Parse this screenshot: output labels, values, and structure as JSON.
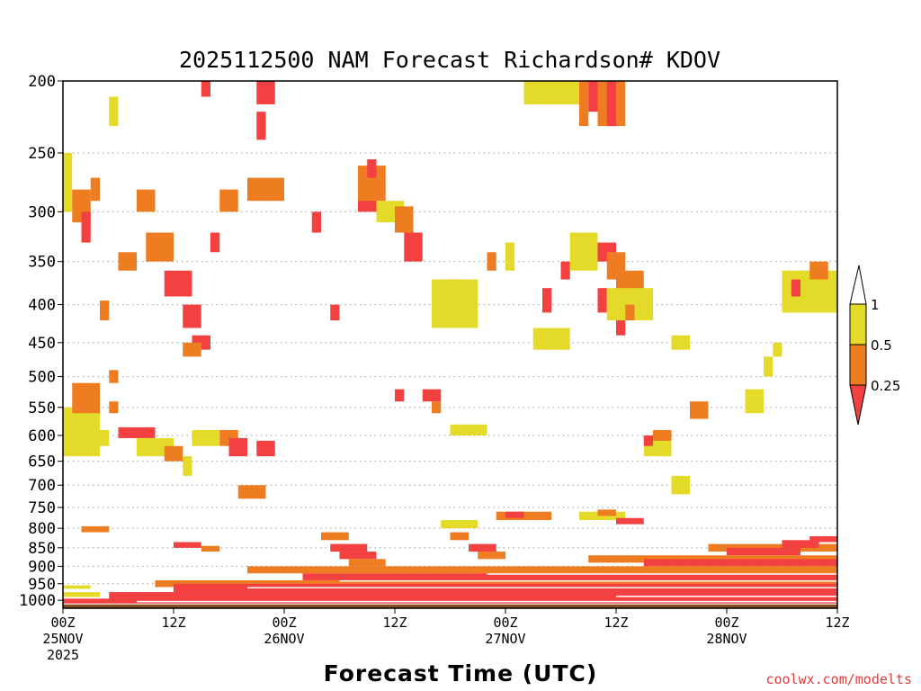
{
  "chart_data": {
    "type": "heatmap",
    "title": "2025112500 NAM Forecast Richardson# KDOV",
    "xlabel": "Forecast Time (UTC)",
    "ylabel": "",
    "credit": "coolwx.com/modelts",
    "x_hours_range": [
      0,
      84
    ],
    "y_pressure_range": [
      1025,
      200
    ],
    "y_ticks": [
      "200",
      "250",
      "300",
      "350",
      "400",
      "450",
      "500",
      "550",
      "600",
      "650",
      "700",
      "750",
      "800",
      "850",
      "900",
      "950",
      "1000"
    ],
    "x_ticks": [
      {
        "hour": 0,
        "line1": "00Z",
        "line2": "25NOV",
        "line3": "2025"
      },
      {
        "hour": 12,
        "line1": "12Z",
        "line2": "",
        "line3": ""
      },
      {
        "hour": 24,
        "line1": "00Z",
        "line2": "26NOV",
        "line3": ""
      },
      {
        "hour": 36,
        "line1": "12Z",
        "line2": "",
        "line3": ""
      },
      {
        "hour": 48,
        "line1": "00Z",
        "line2": "27NOV",
        "line3": ""
      },
      {
        "hour": 60,
        "line1": "12Z",
        "line2": "",
        "line3": ""
      },
      {
        "hour": 72,
        "line1": "00Z",
        "line2": "28NOV",
        "line3": ""
      },
      {
        "hour": 84,
        "line1": "12Z",
        "line2": "",
        "line3": ""
      }
    ],
    "legend": {
      "labels": [
        "1",
        "0.5",
        "0.25"
      ],
      "bins": [
        {
          "range": "0.5-1",
          "color": "#e4da2a"
        },
        {
          "range": "0.25-0.5",
          "color": "#ee7d22"
        },
        {
          "range": "<0.25",
          "color": "#f34040"
        }
      ]
    },
    "colors": {
      "y": "#e4da2a",
      "o": "#ee7d22",
      "r": "#f34040",
      "ground": "#8a4a22"
    },
    "ground_pressure": 1013,
    "cells": [
      {
        "t": [
          0,
          4
        ],
        "p": [
          640,
          550
        ],
        "c": "y"
      },
      {
        "t": [
          1,
          4
        ],
        "p": [
          560,
          510
        ],
        "c": "o"
      },
      {
        "t": [
          2,
          5
        ],
        "p": [
          620,
          590
        ],
        "c": "y"
      },
      {
        "t": [
          5,
          6
        ],
        "p": [
          510,
          490
        ],
        "c": "o"
      },
      {
        "t": [
          5,
          6
        ],
        "p": [
          560,
          540
        ],
        "c": "o"
      },
      {
        "t": [
          6,
          10
        ],
        "p": [
          605,
          585
        ],
        "c": "r"
      },
      {
        "t": [
          8,
          12
        ],
        "p": [
          640,
          605
        ],
        "c": "y"
      },
      {
        "t": [
          11,
          13
        ],
        "p": [
          650,
          620
        ],
        "c": "o"
      },
      {
        "t": [
          13,
          14
        ],
        "p": [
          680,
          640
        ],
        "c": "y"
      },
      {
        "t": [
          14,
          17
        ],
        "p": [
          620,
          590
        ],
        "c": "y"
      },
      {
        "t": [
          17,
          19
        ],
        "p": [
          620,
          590
        ],
        "c": "o"
      },
      {
        "t": [
          18,
          20
        ],
        "p": [
          640,
          605
        ],
        "c": "r"
      },
      {
        "t": [
          19,
          22
        ],
        "p": [
          730,
          700
        ],
        "c": "o"
      },
      {
        "t": [
          21,
          23
        ],
        "p": [
          640,
          610
        ],
        "c": "r"
      },
      {
        "t": [
          0,
          1
        ],
        "p": [
          300,
          250
        ],
        "c": "y"
      },
      {
        "t": [
          1,
          3
        ],
        "p": [
          310,
          280
        ],
        "c": "o"
      },
      {
        "t": [
          2,
          3
        ],
        "p": [
          330,
          300
        ],
        "c": "r"
      },
      {
        "t": [
          3,
          4
        ],
        "p": [
          290,
          270
        ],
        "c": "o"
      },
      {
        "t": [
          4,
          5
        ],
        "p": [
          420,
          395
        ],
        "c": "o"
      },
      {
        "t": [
          5,
          6
        ],
        "p": [
          230,
          210
        ],
        "c": "y"
      },
      {
        "t": [
          6,
          8
        ],
        "p": [
          360,
          340
        ],
        "c": "o"
      },
      {
        "t": [
          8,
          10
        ],
        "p": [
          300,
          280
        ],
        "c": "o"
      },
      {
        "t": [
          9,
          12
        ],
        "p": [
          350,
          320
        ],
        "c": "o"
      },
      {
        "t": [
          11,
          14
        ],
        "p": [
          390,
          360
        ],
        "c": "r"
      },
      {
        "t": [
          13,
          15
        ],
        "p": [
          430,
          400
        ],
        "c": "r"
      },
      {
        "t": [
          14,
          16
        ],
        "p": [
          460,
          440
        ],
        "c": "r"
      },
      {
        "t": [
          13,
          15
        ],
        "p": [
          470,
          450
        ],
        "c": "o"
      },
      {
        "t": [
          15,
          16
        ],
        "p": [
          210,
          200
        ],
        "c": "r"
      },
      {
        "t": [
          16,
          17
        ],
        "p": [
          340,
          320
        ],
        "c": "r"
      },
      {
        "t": [
          17,
          19
        ],
        "p": [
          300,
          280
        ],
        "c": "o"
      },
      {
        "t": [
          20,
          22
        ],
        "p": [
          290,
          270
        ],
        "c": "o"
      },
      {
        "t": [
          21,
          23
        ],
        "p": [
          215,
          200
        ],
        "c": "r"
      },
      {
        "t": [
          21,
          22
        ],
        "p": [
          240,
          220
        ],
        "c": "r"
      },
      {
        "t": [
          22,
          24
        ],
        "p": [
          290,
          270
        ],
        "c": "o"
      },
      {
        "t": [
          27,
          28
        ],
        "p": [
          320,
          300
        ],
        "c": "r"
      },
      {
        "t": [
          29,
          30
        ],
        "p": [
          420,
          400
        ],
        "c": "r"
      },
      {
        "t": [
          32,
          34
        ],
        "p": [
          300,
          270
        ],
        "c": "r"
      },
      {
        "t": [
          32,
          35
        ],
        "p": [
          290,
          260
        ],
        "c": "o"
      },
      {
        "t": [
          33,
          34
        ],
        "p": [
          270,
          255
        ],
        "c": "r"
      },
      {
        "t": [
          34,
          37
        ],
        "p": [
          310,
          290
        ],
        "c": "y"
      },
      {
        "t": [
          36,
          38
        ],
        "p": [
          320,
          295
        ],
        "c": "o"
      },
      {
        "t": [
          37,
          39
        ],
        "p": [
          350,
          320
        ],
        "c": "r"
      },
      {
        "t": [
          36,
          37
        ],
        "p": [
          540,
          520
        ],
        "c": "r"
      },
      {
        "t": [
          39,
          41
        ],
        "p": [
          540,
          520
        ],
        "c": "r"
      },
      {
        "t": [
          40,
          41
        ],
        "p": [
          560,
          540
        ],
        "c": "o"
      },
      {
        "t": [
          41,
          43
        ],
        "p": [
          390,
          370
        ],
        "c": "r"
      },
      {
        "t": [
          43,
          44
        ],
        "p": [
          390,
          370
        ],
        "c": "o"
      },
      {
        "t": [
          40,
          45
        ],
        "p": [
          430,
          370
        ],
        "c": "y"
      },
      {
        "t": [
          42,
          46
        ],
        "p": [
          600,
          580
        ],
        "c": "y"
      },
      {
        "t": [
          46,
          47
        ],
        "p": [
          360,
          340
        ],
        "c": "o"
      },
      {
        "t": [
          48,
          49
        ],
        "p": [
          360,
          330
        ],
        "c": "y"
      },
      {
        "t": [
          52,
          53
        ],
        "p": [
          410,
          380
        ],
        "c": "r"
      },
      {
        "t": [
          51,
          55
        ],
        "p": [
          460,
          430
        ],
        "c": "y"
      },
      {
        "t": [
          54,
          55
        ],
        "p": [
          370,
          350
        ],
        "c": "r"
      },
      {
        "t": [
          55,
          58
        ],
        "p": [
          360,
          320
        ],
        "c": "y"
      },
      {
        "t": [
          56,
          57
        ],
        "p": [
          230,
          200
        ],
        "c": "o"
      },
      {
        "t": [
          57,
          59
        ],
        "p": [
          220,
          200
        ],
        "c": "r"
      },
      {
        "t": [
          58,
          61
        ],
        "p": [
          230,
          200
        ],
        "c": "o"
      },
      {
        "t": [
          59,
          60
        ],
        "p": [
          230,
          200
        ],
        "c": "r"
      },
      {
        "t": [
          50,
          56
        ],
        "p": [
          215,
          200
        ],
        "c": "y"
      },
      {
        "t": [
          58,
          59
        ],
        "p": [
          410,
          380
        ],
        "c": "r"
      },
      {
        "t": [
          58,
          60
        ],
        "p": [
          350,
          330
        ],
        "c": "r"
      },
      {
        "t": [
          59,
          61
        ],
        "p": [
          370,
          340
        ],
        "c": "o"
      },
      {
        "t": [
          60,
          63
        ],
        "p": [
          390,
          360
        ],
        "c": "o"
      },
      {
        "t": [
          59,
          64
        ],
        "p": [
          420,
          380
        ],
        "c": "y"
      },
      {
        "t": [
          60,
          61
        ],
        "p": [
          440,
          420
        ],
        "c": "r"
      },
      {
        "t": [
          61,
          62
        ],
        "p": [
          420,
          400
        ],
        "c": "o"
      },
      {
        "t": [
          66,
          68
        ],
        "p": [
          460,
          440
        ],
        "c": "y"
      },
      {
        "t": [
          68,
          70
        ],
        "p": [
          570,
          540
        ],
        "c": "o"
      },
      {
        "t": [
          63,
          66
        ],
        "p": [
          640,
          600
        ],
        "c": "y"
      },
      {
        "t": [
          63,
          64
        ],
        "p": [
          620,
          600
        ],
        "c": "r"
      },
      {
        "t": [
          64,
          66
        ],
        "p": [
          610,
          590
        ],
        "c": "o"
      },
      {
        "t": [
          65,
          66
        ],
        "p": [
          640,
          620
        ],
        "c": "y"
      },
      {
        "t": [
          66,
          68
        ],
        "p": [
          720,
          680
        ],
        "c": "y"
      },
      {
        "t": [
          74,
          76
        ],
        "p": [
          560,
          520
        ],
        "c": "y"
      },
      {
        "t": [
          76,
          77
        ],
        "p": [
          500,
          470
        ],
        "c": "y"
      },
      {
        "t": [
          77,
          78
        ],
        "p": [
          470,
          450
        ],
        "c": "y"
      },
      {
        "t": [
          80,
          82
        ],
        "p": [
          380,
          360
        ],
        "c": "o"
      },
      {
        "t": [
          78,
          84
        ],
        "p": [
          410,
          360
        ],
        "c": "y"
      },
      {
        "t": [
          79,
          80
        ],
        "p": [
          390,
          370
        ],
        "c": "r"
      },
      {
        "t": [
          81,
          83
        ],
        "p": [
          370,
          350
        ],
        "c": "o"
      },
      {
        "t": [
          56,
          61
        ],
        "p": [
          780,
          760
        ],
        "c": "y"
      },
      {
        "t": [
          58,
          60
        ],
        "p": [
          770,
          755
        ],
        "c": "o"
      },
      {
        "t": [
          60,
          63
        ],
        "p": [
          790,
          775
        ],
        "c": "r"
      },
      {
        "t": [
          47,
          53
        ],
        "p": [
          780,
          760
        ],
        "c": "o"
      },
      {
        "t": [
          48,
          50
        ],
        "p": [
          775,
          760
        ],
        "c": "r"
      },
      {
        "t": [
          41,
          45
        ],
        "p": [
          800,
          780
        ],
        "c": "y"
      },
      {
        "t": [
          42,
          44
        ],
        "p": [
          830,
          810
        ],
        "c": "o"
      },
      {
        "t": [
          28,
          31
        ],
        "p": [
          830,
          810
        ],
        "c": "o"
      },
      {
        "t": [
          29,
          33
        ],
        "p": [
          860,
          840
        ],
        "c": "r"
      },
      {
        "t": [
          30,
          34
        ],
        "p": [
          880,
          860
        ],
        "c": "r"
      },
      {
        "t": [
          31,
          35
        ],
        "p": [
          900,
          880
        ],
        "c": "o"
      },
      {
        "t": [
          44,
          47
        ],
        "p": [
          860,
          840
        ],
        "c": "r"
      },
      {
        "t": [
          45,
          48
        ],
        "p": [
          880,
          860
        ],
        "c": "o"
      },
      {
        "t": [
          12,
          15
        ],
        "p": [
          850,
          835
        ],
        "c": "r"
      },
      {
        "t": [
          15,
          17
        ],
        "p": [
          860,
          845
        ],
        "c": "o"
      },
      {
        "t": [
          2,
          5
        ],
        "p": [
          810,
          795
        ],
        "c": "o"
      },
      {
        "t": [
          57,
          84
        ],
        "p": [
          890,
          870
        ],
        "c": "o"
      },
      {
        "t": [
          63,
          84
        ],
        "p": [
          900,
          880
        ],
        "c": "r"
      },
      {
        "t": [
          70,
          84
        ],
        "p": [
          860,
          840
        ],
        "c": "o"
      },
      {
        "t": [
          72,
          80
        ],
        "p": [
          870,
          850
        ],
        "c": "r"
      },
      {
        "t": [
          78,
          82
        ],
        "p": [
          850,
          830
        ],
        "c": "r"
      },
      {
        "t": [
          81,
          84
        ],
        "p": [
          835,
          820
        ],
        "c": "r"
      },
      {
        "t": [
          20,
          84
        ],
        "p": [
          920,
          900
        ],
        "c": "o"
      },
      {
        "t": [
          26,
          84
        ],
        "p": [
          940,
          920
        ],
        "c": "r"
      },
      {
        "t": [
          10,
          84
        ],
        "p": [
          960,
          940
        ],
        "c": "o"
      },
      {
        "t": [
          12,
          84
        ],
        "p": [
          980,
          950
        ],
        "c": "r"
      },
      {
        "t": [
          5,
          84
        ],
        "p": [
          1000,
          975
        ],
        "c": "r"
      },
      {
        "t": [
          0,
          84
        ],
        "p": [
          1010,
          995
        ],
        "c": "r"
      },
      {
        "t": [
          0,
          4
        ],
        "p": [
          990,
          975
        ],
        "c": "y"
      },
      {
        "t": [
          0,
          3
        ],
        "p": [
          965,
          955
        ],
        "c": "y"
      }
    ],
    "white_streaks": [
      {
        "t": [
          8,
          84
        ],
        "p": [
          1004,
          1002
        ]
      },
      {
        "t": [
          20,
          84
        ],
        "p": [
          962,
          960
        ]
      },
      {
        "t": [
          30,
          84
        ],
        "p": [
          942,
          940
        ]
      },
      {
        "t": [
          46,
          84
        ],
        "p": [
          922,
          920
        ]
      },
      {
        "t": [
          60,
          84
        ],
        "p": [
          988,
          986
        ]
      }
    ]
  }
}
